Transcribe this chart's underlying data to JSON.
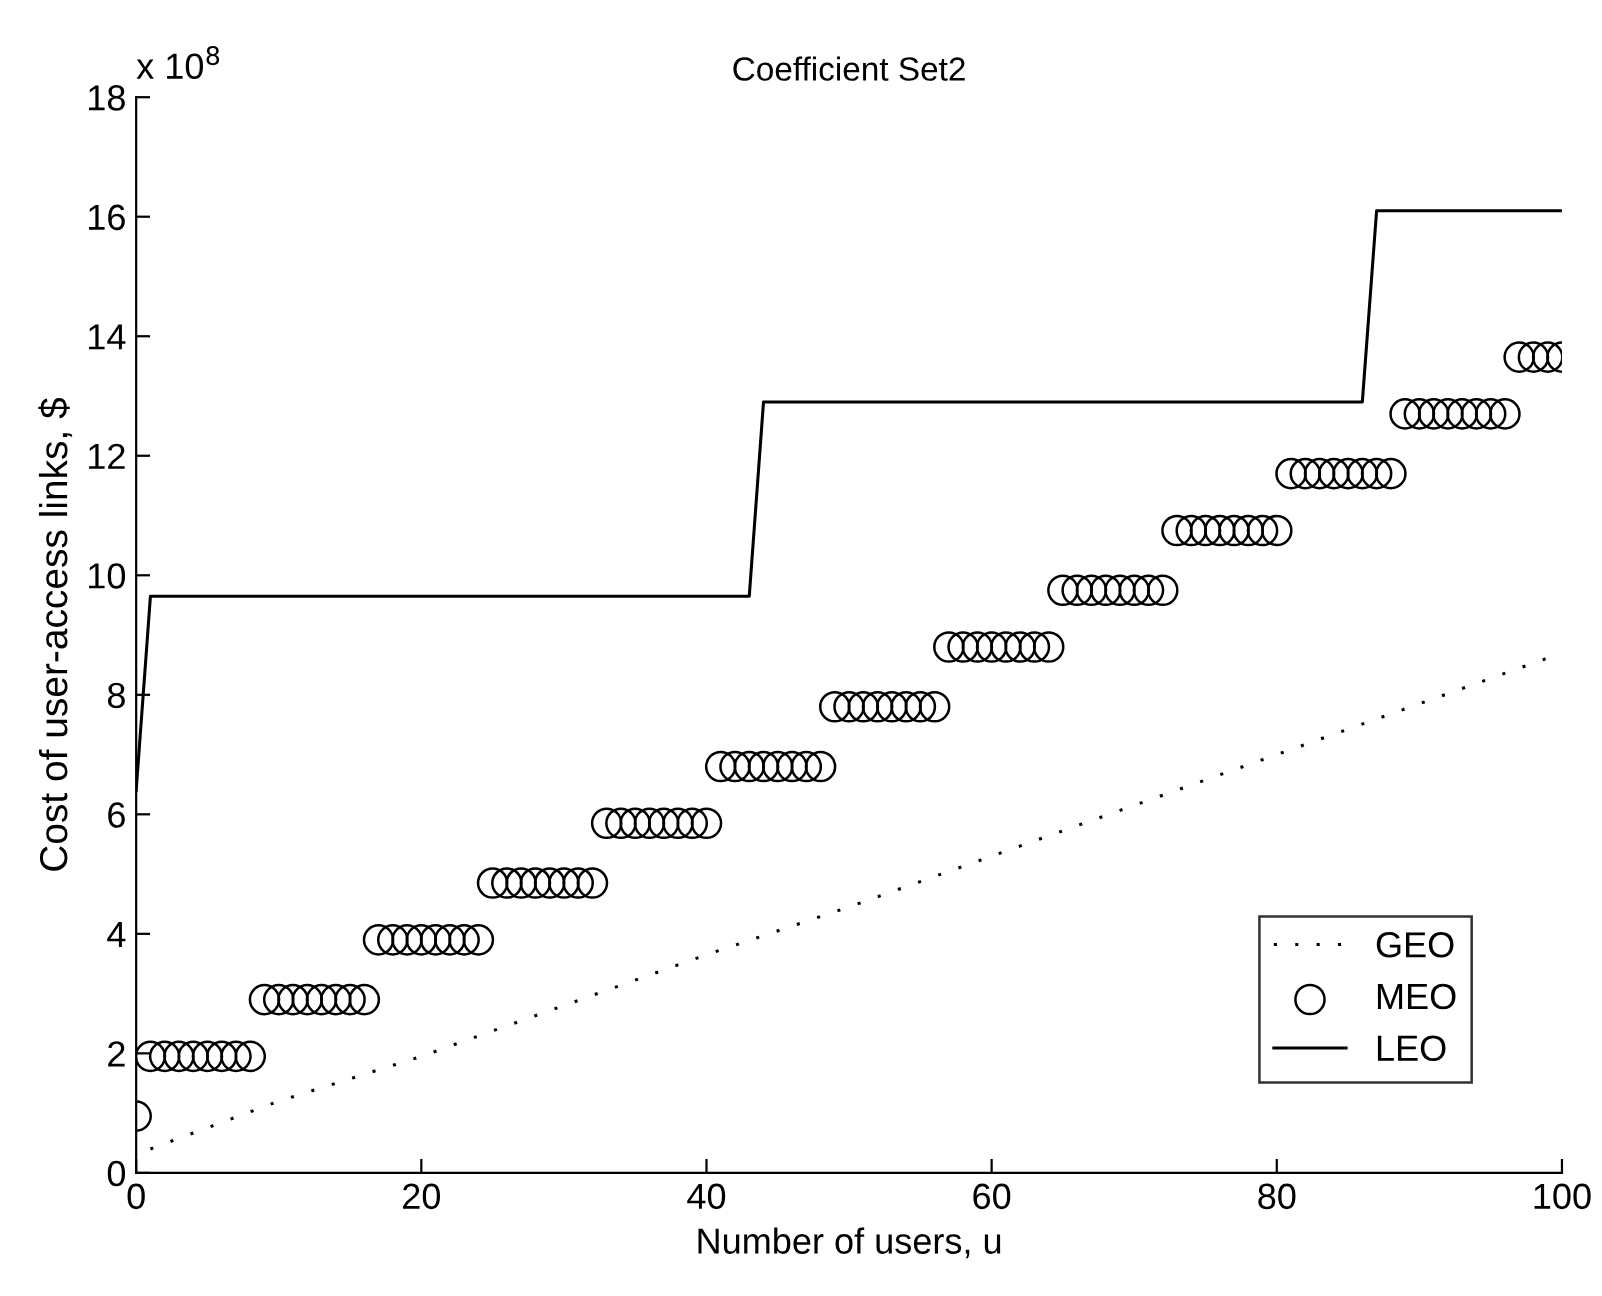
{
  "chart_data": {
    "type": "line",
    "title": "Coefficient Set2",
    "xlabel": "Number of users, u",
    "ylabel": "Cost of user-access links, $",
    "annotations": [
      "x 10$^{8}$"
    ],
    "xlim": [
      0,
      100
    ],
    "xticks": [
      0,
      20,
      40,
      60,
      80,
      100
    ],
    "ylim": [
      0,
      18
    ],
    "yticks": [
      0,
      2,
      4,
      6,
      8,
      10,
      12,
      14,
      16,
      18
    ],
    "grid": false,
    "legend": "bottom right",
    "series": [
      {
        "name": "GEO",
        "line_style": "dotted",
        "marker": "none",
        "color": "#000000",
        "x": [
          1,
          10,
          20,
          30,
          40,
          50,
          60,
          70,
          80,
          90,
          100
        ],
        "values": [
          0.4,
          1.2,
          1.95,
          2.8,
          3.65,
          4.45,
          5.3,
          6.15,
          7.0,
          7.85,
          8.7
        ]
      },
      {
        "name": "MEO",
        "type": "scatter",
        "marker": "circle",
        "color": "#000000",
        "x": [
          0,
          1,
          2,
          3,
          4,
          5,
          6,
          7,
          8,
          9,
          10,
          11,
          12,
          13,
          14,
          15,
          16,
          17,
          18,
          19,
          20,
          21,
          22,
          23,
          24,
          25,
          26,
          27,
          28,
          29,
          30,
          31,
          32,
          33,
          34,
          35,
          36,
          37,
          38,
          39,
          40,
          41,
          42,
          43,
          44,
          45,
          46,
          47,
          48,
          49,
          50,
          51,
          52,
          53,
          54,
          55,
          56,
          57,
          58,
          59,
          60,
          61,
          62,
          63,
          64,
          65,
          66,
          67,
          68,
          69,
          70,
          71,
          72,
          73,
          74,
          75,
          76,
          77,
          78,
          79,
          80,
          81,
          82,
          83,
          84,
          85,
          86,
          87,
          88,
          89,
          90,
          91,
          92,
          93,
          94,
          95,
          96,
          97,
          98,
          99,
          100
        ],
        "values": [
          0.95,
          1.95,
          1.95,
          1.95,
          1.95,
          1.95,
          1.95,
          1.95,
          1.95,
          2.9,
          2.9,
          2.9,
          2.9,
          2.9,
          2.9,
          2.9,
          2.9,
          3.9,
          3.9,
          3.9,
          3.9,
          3.9,
          3.9,
          3.9,
          3.9,
          4.85,
          4.85,
          4.85,
          4.85,
          4.85,
          4.85,
          4.85,
          4.85,
          5.85,
          5.85,
          5.85,
          5.85,
          5.85,
          5.85,
          5.85,
          5.85,
          6.8,
          6.8,
          6.8,
          6.8,
          6.8,
          6.8,
          6.8,
          6.8,
          7.8,
          7.8,
          7.8,
          7.8,
          7.8,
          7.8,
          7.8,
          7.8,
          8.8,
          8.8,
          8.8,
          8.8,
          8.8,
          8.8,
          8.8,
          8.8,
          9.75,
          9.75,
          9.75,
          9.75,
          9.75,
          9.75,
          9.75,
          9.75,
          10.75,
          10.75,
          10.75,
          10.75,
          10.75,
          10.75,
          10.75,
          10.75,
          11.7,
          11.7,
          11.7,
          11.7,
          11.7,
          11.7,
          11.7,
          11.7,
          12.7,
          12.7,
          12.7,
          12.7,
          12.7,
          12.7,
          12.7,
          12.7,
          13.65,
          13.65,
          13.65,
          13.65
        ]
      },
      {
        "name": "LEO",
        "line_style": "solid",
        "marker": "none",
        "color": "#000000",
        "x": [
          0,
          1,
          43,
          44,
          86,
          87,
          100
        ],
        "values": [
          6.4,
          9.65,
          9.65,
          12.9,
          12.9,
          16.1,
          16.1
        ]
      }
    ]
  }
}
